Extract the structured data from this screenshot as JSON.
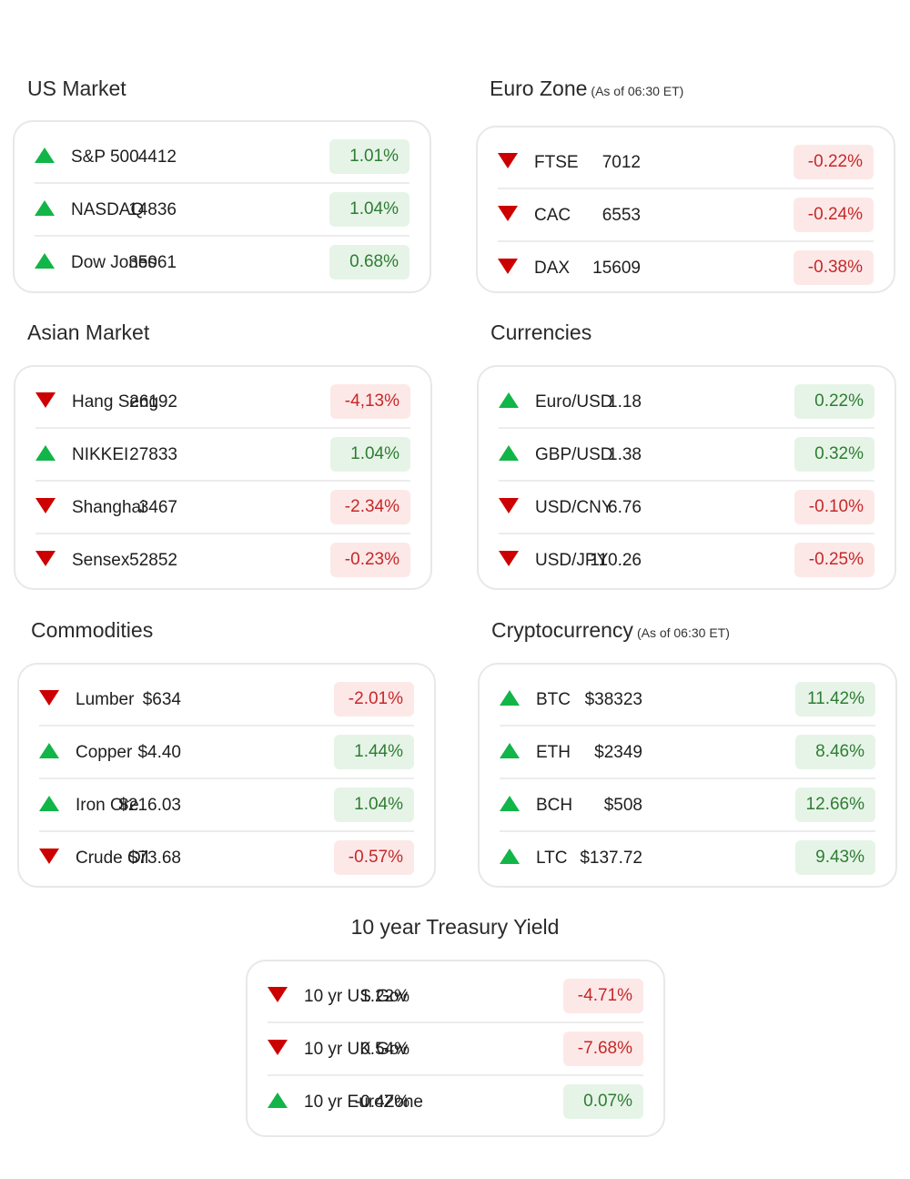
{
  "us_market": {
    "title": "US Market",
    "rows": [
      {
        "name": "S&P 500",
        "value": "4412",
        "change": "1.01%",
        "dir": "up"
      },
      {
        "name": "NASDAQ",
        "value": "14836",
        "change": "1.04%",
        "dir": "up"
      },
      {
        "name": "Dow Jones",
        "value": "35061",
        "change": "0.68%",
        "dir": "up"
      }
    ]
  },
  "euro_zone": {
    "title": "Euro Zone",
    "note": "(As of 06:30 ET)",
    "rows": [
      {
        "name": "FTSE",
        "value": "7012",
        "change": "-0.22%",
        "dir": "down"
      },
      {
        "name": "CAC",
        "value": "6553",
        "change": "-0.24%",
        "dir": "down"
      },
      {
        "name": "DAX",
        "value": "15609",
        "change": "-0.38%",
        "dir": "down"
      }
    ]
  },
  "asian_market": {
    "title": "Asian Market",
    "rows": [
      {
        "name": "Hang Seng",
        "value": "26192",
        "change": "-4,13%",
        "dir": "down"
      },
      {
        "name": "NIKKEI",
        "value": "27833",
        "change": "1.04%",
        "dir": "up"
      },
      {
        "name": "Shanghai",
        "value": "3467",
        "change": "-2.34%",
        "dir": "down"
      },
      {
        "name": "Sensex",
        "value": "52852",
        "change": "-0.23%",
        "dir": "down"
      }
    ]
  },
  "currencies": {
    "title": "Currencies",
    "rows": [
      {
        "name": "Euro/USD",
        "value": "1.18",
        "change": "0.22%",
        "dir": "up"
      },
      {
        "name": "GBP/USD",
        "value": "1.38",
        "change": "0.32%",
        "dir": "up"
      },
      {
        "name": "USD/CNY",
        "value": "6.76",
        "change": "-0.10%",
        "dir": "down"
      },
      {
        "name": "USD/JPY",
        "value": "110.26",
        "change": "-0.25%",
        "dir": "down"
      }
    ]
  },
  "commodities": {
    "title": "Commodities",
    "rows": [
      {
        "name": "Lumber",
        "value": "$634",
        "change": "-2.01%",
        "dir": "down"
      },
      {
        "name": "Copper",
        "value": "$4.40",
        "change": "1.44%",
        "dir": "up"
      },
      {
        "name": "Iron Ore",
        "value": "$216.03",
        "change": "1.04%",
        "dir": "up"
      },
      {
        "name": "Crude Oil",
        "value": "$73.68",
        "change": "-0.57%",
        "dir": "down"
      }
    ]
  },
  "cryptocurrency": {
    "title": "Cryptocurrency",
    "note": "(As of 06:30 ET)",
    "rows": [
      {
        "name": "BTC",
        "value": "$38323",
        "change": "11.42%",
        "dir": "up"
      },
      {
        "name": "ETH",
        "value": "$2349",
        "change": "8.46%",
        "dir": "up"
      },
      {
        "name": "BCH",
        "value": "$508",
        "change": "12.66%",
        "dir": "up"
      },
      {
        "name": "LTC",
        "value": "$137.72",
        "change": "9.43%",
        "dir": "up"
      }
    ]
  },
  "treasury": {
    "title": "10 year Treasury Yield",
    "rows": [
      {
        "name": "10 yr US Gov",
        "value": "1.22%",
        "change": "-4.71%",
        "dir": "down"
      },
      {
        "name": "10 yr UK Gov",
        "value": "0.54%",
        "change": "-7.68%",
        "dir": "down"
      },
      {
        "name": "10 yr EuroZone",
        "value": "-0.42%",
        "change": "0.07%",
        "dir": "up"
      }
    ]
  },
  "colors": {
    "up": "#12b548",
    "down": "#cc0000",
    "pos_badge_bg": "#e6f4e8",
    "pos_badge_text": "#2e7d32",
    "neg_badge_bg": "#fde8e8",
    "neg_badge_text": "#c62828"
  },
  "icons": {
    "up": "triangle-up-icon",
    "down": "triangle-down-icon"
  }
}
